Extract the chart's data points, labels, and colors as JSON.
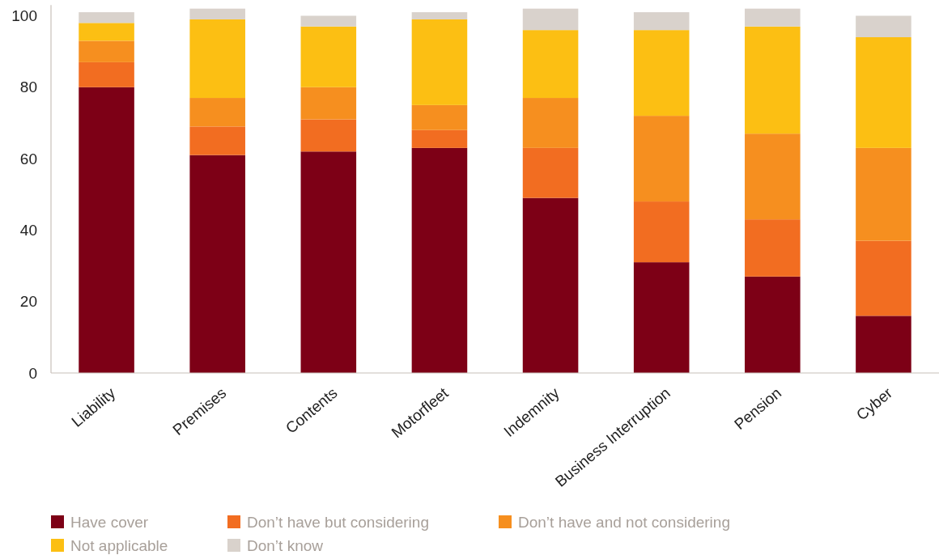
{
  "chart_data": {
    "type": "bar",
    "stacked": true,
    "categories": [
      "Liability",
      "Premises",
      "Contents",
      "Motorfleet",
      "Indemnity",
      "Business Interruption",
      "Pension",
      "Cyber"
    ],
    "series": [
      {
        "name": "Have cover",
        "color": "#7d0016",
        "values": [
          80,
          61,
          62,
          63,
          49,
          31,
          27,
          16
        ]
      },
      {
        "name": "Don’t have but considering",
        "color": "#f26d21",
        "values": [
          7,
          8,
          9,
          5,
          14,
          17,
          16,
          21
        ]
      },
      {
        "name": "Don’t have and not considering",
        "color": "#f68f1f",
        "values": [
          6,
          8,
          9,
          7,
          14,
          24,
          24,
          26
        ]
      },
      {
        "name": "Not applicable",
        "color": "#fcbf13",
        "values": [
          5,
          22,
          17,
          24,
          19,
          24,
          30,
          31
        ]
      },
      {
        "name": "Don’t know",
        "color": "#d9d2cc",
        "values": [
          3,
          3,
          3,
          2,
          6,
          5,
          5,
          6
        ]
      }
    ],
    "ylim": [
      0,
      103
    ],
    "yticks": [
      0,
      20,
      40,
      60,
      80,
      100
    ],
    "grid": false,
    "legend": "bottom"
  }
}
